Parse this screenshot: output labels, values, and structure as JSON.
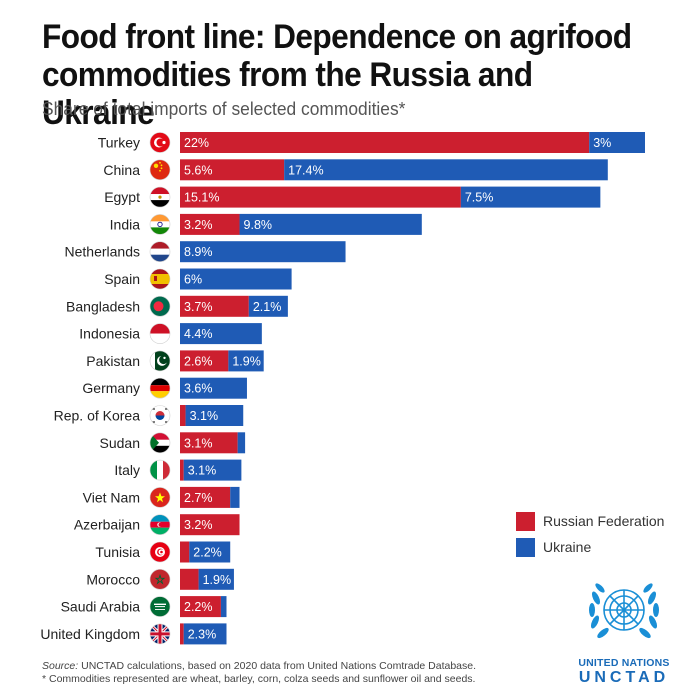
{
  "header": {
    "title": "Food front line: Dependence on agrifood commodities from the Russia and Ukraine",
    "subtitle": "Share of total imports of selected commodities*"
  },
  "colors": {
    "russia": "#cc1f2f",
    "ukraine": "#1f5bb5"
  },
  "legend": {
    "russia_label": "Russian Federation",
    "ukraine_label": "Ukraine"
  },
  "footer": {
    "source_label": "Source:",
    "source": " UNCTAD calculations, based on 2020 data from United Nations Comtrade Database.",
    "note": "* Commodities represented are wheat, barley, corn, colza seeds and sunflower oil and seeds."
  },
  "logo": {
    "line1": "UNITED NATIONS",
    "line2": "UNCTAD"
  },
  "chart_data": {
    "type": "bar",
    "orientation": "horizontal",
    "stacked": true,
    "categories": [
      "Turkey",
      "China",
      "Egypt",
      "India",
      "Netherlands",
      "Spain",
      "Bangladesh",
      "Indonesia",
      "Pakistan",
      "Germany",
      "Rep. of Korea",
      "Sudan",
      "Italy",
      "Viet Nam",
      "Azerbaijan",
      "Tunisia",
      "Morocco",
      "Saudi Arabia",
      "United Kingdom"
    ],
    "flag_icons": [
      "turkey-flag-icon",
      "china-flag-icon",
      "egypt-flag-icon",
      "india-flag-icon",
      "netherlands-flag-icon",
      "spain-flag-icon",
      "bangladesh-flag-icon",
      "indonesia-flag-icon",
      "pakistan-flag-icon",
      "germany-flag-icon",
      "korea-flag-icon",
      "sudan-flag-icon",
      "italy-flag-icon",
      "vietnam-flag-icon",
      "azerbaijan-flag-icon",
      "tunisia-flag-icon",
      "morocco-flag-icon",
      "saudi-arabia-flag-icon",
      "uk-flag-icon"
    ],
    "series": [
      {
        "name": "Russian Federation",
        "values": [
          22,
          5.6,
          15.1,
          3.2,
          0,
          0,
          3.7,
          0,
          2.6,
          0,
          0.3,
          3.1,
          0.2,
          2.7,
          3.2,
          0.5,
          1.0,
          2.2,
          0.2
        ],
        "labels": [
          "22%",
          "5.6%",
          "15.1%",
          "3.2%",
          "",
          "",
          "3.7%",
          "",
          "2.6%",
          "",
          "",
          "3.1%",
          "",
          "2.7%",
          "3.2%",
          "",
          "",
          "2.2%",
          ""
        ]
      },
      {
        "name": "Ukraine",
        "values": [
          3,
          17.4,
          7.5,
          9.8,
          8.9,
          6,
          2.1,
          4.4,
          1.9,
          3.6,
          3.1,
          0.4,
          3.1,
          0.5,
          0,
          2.2,
          1.9,
          0.3,
          2.3
        ],
        "labels": [
          "3%",
          "17.4%",
          "7.5%",
          "9.8%",
          "8.9%",
          "6%",
          "2.1%",
          "4.4%",
          "1.9%",
          "3.6%",
          "3.1%",
          "",
          "3.1%",
          "",
          "",
          "2.2%",
          "1.9%",
          "",
          "2.3%"
        ]
      }
    ],
    "xlim": [
      0,
      25
    ],
    "grid": false,
    "legend_position": "bottom-right"
  }
}
